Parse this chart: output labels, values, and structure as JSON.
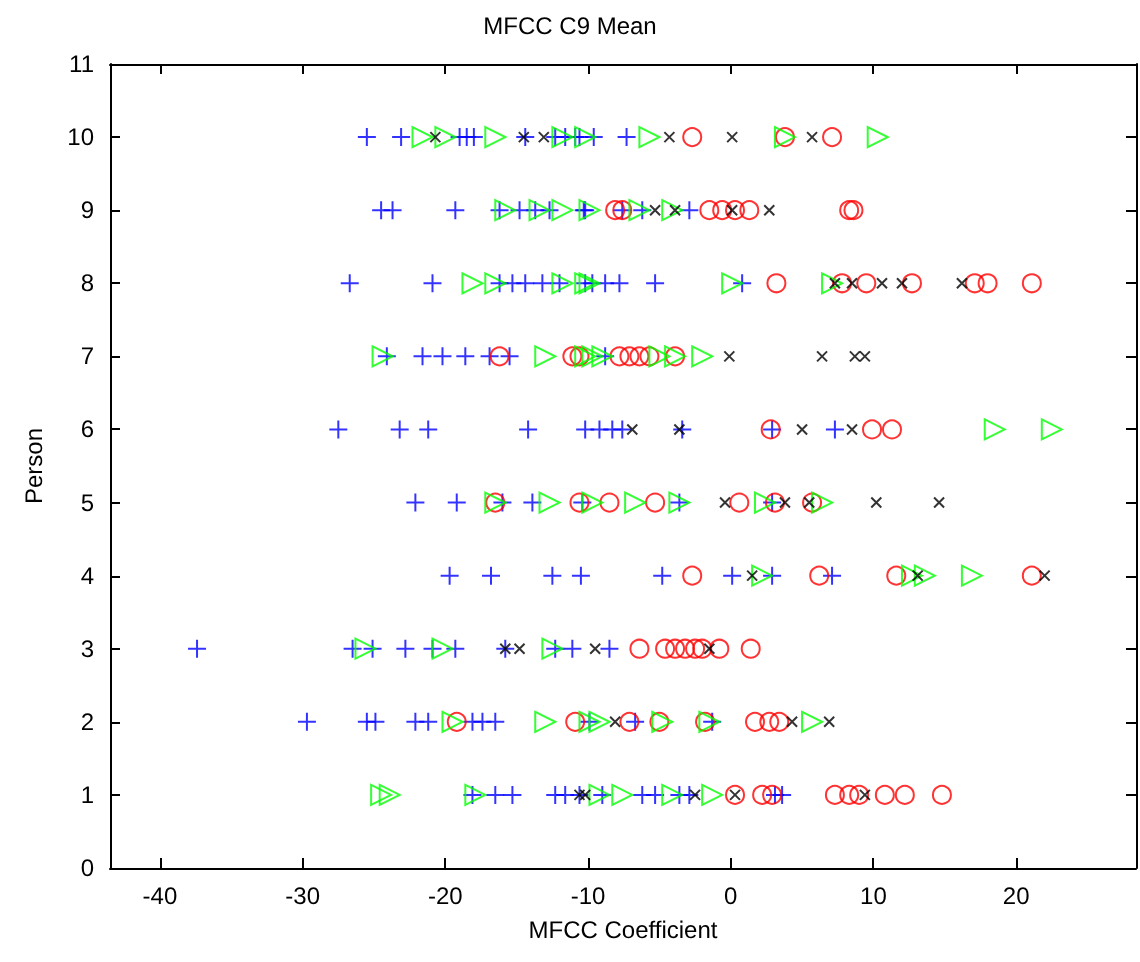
{
  "chart_data": {
    "type": "scatter",
    "title": "MFCC C9 Mean",
    "xlabel": "MFCC Coefficient",
    "ylabel": "Person",
    "xlim": [
      -43.5,
      28.4
    ],
    "xticks": [
      -40,
      -30,
      -20,
      -10,
      0,
      10,
      20
    ],
    "ylim": [
      0,
      11
    ],
    "yticks": [
      0,
      1,
      2,
      3,
      4,
      5,
      6,
      7,
      8,
      9,
      10,
      11
    ],
    "grid": false,
    "series": [
      {
        "color": "#0000ff",
        "marker": "cross",
        "x": [
          -25.5,
          -23.1,
          -19,
          -18.5,
          -18,
          -14.4,
          -12.3,
          -11.6,
          -10.9,
          -10.6,
          -9.6,
          -7.3,
          -24.5,
          -23.7,
          -19.3,
          -16.2,
          -14.8,
          -13.7,
          -12.7,
          -10.2,
          -10.3,
          -7.6,
          -6.2,
          -2.9,
          -26.7,
          -20.9,
          -16.2,
          -15.3,
          -14.4,
          -13.2,
          -12,
          -10.2,
          -9.7,
          -8.8,
          -7.8,
          -5.3,
          0.8,
          -24.1,
          -21.6,
          -20.2,
          -18.6,
          -16.9,
          -15.5,
          -8.8,
          -27.5,
          -23.2,
          -21.2,
          -14.2,
          -10.2,
          -9.2,
          -8.3,
          -7.6,
          -3.4,
          2.9,
          7.3,
          -22.1,
          -19.2,
          -16,
          -13.9,
          -10.4,
          -3.6,
          2.9,
          -19.7,
          -16.8,
          -12.5,
          -10.5,
          -4.8,
          0.1,
          2.9,
          7.1,
          -37.4,
          -26.5,
          -25.1,
          -22.8,
          -20.9,
          -19.3,
          -15.8,
          -12.3,
          -11.1,
          -8.5,
          -29.7,
          -25.5,
          -24.9,
          -22.1,
          -21.2,
          -18.1,
          -17.4,
          -16.5,
          -9.9,
          -6.7,
          -1.3,
          -18.1,
          -16.5,
          -15.3,
          -12.3,
          -11.6,
          -10.6,
          -9,
          -6.2,
          -5.3,
          -3.6,
          -2.9,
          3.1,
          3.6
        ],
        "values": [
          10,
          10,
          10,
          10,
          10,
          10,
          10,
          10,
          10,
          10,
          10,
          10,
          9,
          9,
          9,
          9,
          9,
          9,
          9,
          9,
          9,
          9,
          9,
          9,
          8,
          8,
          8,
          8,
          8,
          8,
          8,
          8,
          8,
          8,
          8,
          8,
          8,
          7,
          7,
          7,
          7,
          7,
          7,
          7,
          6,
          6,
          6,
          6,
          6,
          6,
          6,
          6,
          6,
          6,
          6,
          5,
          5,
          5,
          5,
          5,
          5,
          5,
          4,
          4,
          4,
          4,
          4,
          4,
          4,
          4,
          3,
          3,
          3,
          3,
          3,
          3,
          3,
          3,
          3,
          3,
          2,
          2,
          2,
          2,
          2,
          2,
          2,
          2,
          2,
          2,
          2,
          1,
          1,
          1,
          1,
          1,
          1,
          1,
          1,
          1,
          1,
          1,
          1,
          1
        ]
      },
      {
        "color": "#ff0000",
        "marker": "circle",
        "x": [
          -2.7,
          3.8,
          7.1,
          -8.1,
          -7.6,
          -1.5,
          -0.6,
          0.3,
          1.3,
          8.3,
          8.6,
          3.2,
          7.8,
          9.5,
          12.7,
          17.1,
          18,
          21.1,
          -16.2,
          -11.1,
          -10.6,
          -7.8,
          -7.1,
          -6.4,
          -5.7,
          -3.9,
          2.8,
          9.9,
          11.3,
          -16.5,
          -10.6,
          -8.5,
          -5.3,
          0.6,
          3.1,
          5.7,
          -2.7,
          6.2,
          11.6,
          21.1,
          -6.4,
          -4.6,
          -3.9,
          -3.2,
          -2.5,
          -2,
          -0.8,
          1.4,
          -19.2,
          -10.9,
          -7.1,
          -5,
          -1.8,
          1.7,
          2.7,
          3.4,
          0.3,
          2.2,
          2.9,
          7.3,
          8.3,
          9,
          10.8,
          12.2,
          14.8
        ],
        "values": [
          10,
          10,
          10,
          9,
          9,
          9,
          9,
          9,
          9,
          9,
          9,
          8,
          8,
          8,
          8,
          8,
          8,
          8,
          7,
          7,
          7,
          7,
          7,
          7,
          7,
          7,
          6,
          6,
          6,
          5,
          5,
          5,
          5,
          5,
          5,
          5,
          4,
          4,
          4,
          4,
          3,
          3,
          3,
          3,
          3,
          3,
          3,
          3,
          2,
          2,
          2,
          2,
          2,
          2,
          2,
          2,
          1,
          1,
          1,
          1,
          1,
          1,
          1,
          1,
          1
        ]
      },
      {
        "color": "#00ff00",
        "marker": "triangle",
        "x": [
          -21.6,
          -20,
          -16.5,
          -11.8,
          -10.2,
          -5.7,
          3.8,
          10.3,
          -15.8,
          -13.4,
          -11.8,
          -9.9,
          -6.4,
          -4.1,
          -18.1,
          -16.5,
          -11.8,
          -9.9,
          -10.2,
          0.1,
          7.1,
          -24.4,
          -13,
          -9.7,
          -10.2,
          -9,
          -5,
          -3.9,
          -2,
          18.5,
          22.5,
          -16.5,
          -12.7,
          -9.7,
          -6.7,
          -3.6,
          2.4,
          6.4,
          2.2,
          12.7,
          13.6,
          16.9,
          -25.6,
          -20.2,
          -12.5,
          -19.5,
          -13,
          -9.9,
          -9.2,
          -4.8,
          -1.5,
          5.7,
          -24.5,
          -23.9,
          -17.9,
          -9.2,
          -7.6,
          -4.1,
          -1.3
        ],
        "values": [
          10,
          10,
          10,
          10,
          10,
          10,
          10,
          10,
          9,
          9,
          9,
          9,
          9,
          9,
          8,
          8,
          8,
          8,
          8,
          8,
          8,
          7,
          7,
          7,
          7,
          7,
          7,
          7,
          7,
          6,
          6,
          5,
          5,
          5,
          5,
          5,
          5,
          5,
          4,
          4,
          4,
          4,
          3,
          3,
          3,
          2,
          2,
          2,
          2,
          2,
          2,
          2,
          1,
          1,
          1,
          1,
          1,
          1,
          1
        ]
      },
      {
        "color": "#000000",
        "marker": "x",
        "x": [
          -20.7,
          -14.5,
          -13.1,
          -4.3,
          0.1,
          5.7,
          -5.3,
          -3.9,
          0.1,
          2.7,
          7.3,
          8.5,
          10.6,
          12,
          16.2,
          -0.1,
          6.4,
          8.7,
          9.4,
          -6.9,
          -3.6,
          5,
          8.5,
          -0.4,
          3.8,
          5.5,
          10.2,
          14.6,
          1.5,
          13.1,
          22,
          -15.8,
          -14.8,
          -9.5,
          -1.5,
          -8.1,
          4.3,
          6.9,
          -10.6,
          -10.2,
          -2.5,
          0.3,
          9.4
        ],
        "values": [
          10,
          10,
          10,
          10,
          10,
          10,
          9,
          9,
          9,
          9,
          8,
          8,
          8,
          8,
          8,
          7,
          7,
          7,
          7,
          6,
          6,
          6,
          6,
          5,
          5,
          5,
          5,
          5,
          4,
          4,
          4,
          3,
          3,
          3,
          3,
          2,
          2,
          2,
          1,
          1,
          1,
          1,
          1
        ]
      }
    ]
  }
}
